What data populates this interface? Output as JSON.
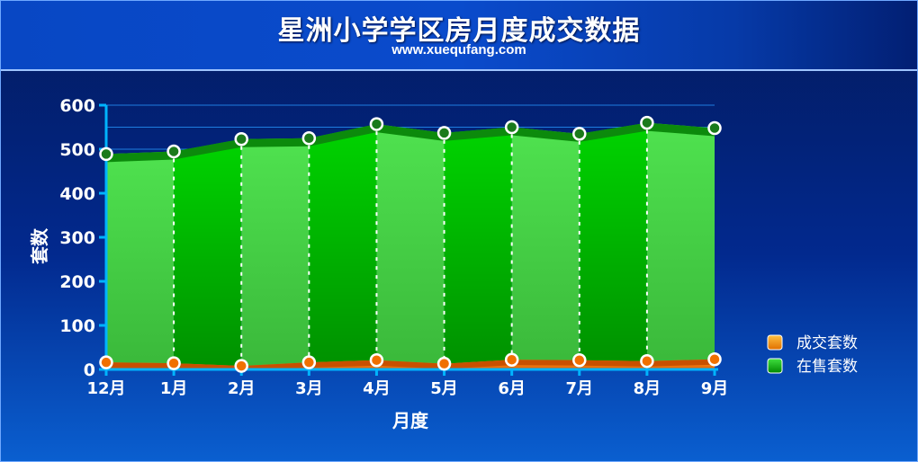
{
  "header": {
    "title": "星洲小学学区房月度成交数据",
    "subtitle": "www.xuequfang.com"
  },
  "chart_data": {
    "type": "area",
    "title": "星洲小学学区房月度成交数据",
    "subtitle": "www.xuequfang.com",
    "xlabel": "月度",
    "ylabel": "套数",
    "categories": [
      "12月",
      "1月",
      "2月",
      "3月",
      "4月",
      "5月",
      "6月",
      "7月",
      "8月",
      "9月"
    ],
    "y_ticks": [
      "600",
      "500",
      "400",
      "300",
      "200",
      "100",
      "0"
    ],
    "ylim": [
      0,
      600
    ],
    "legend_position": "right",
    "series": [
      {
        "name": "成交套数",
        "color": "#f07800",
        "values": [
          16,
          14,
          8,
          16,
          21,
          13,
          22,
          21,
          19,
          23
        ]
      },
      {
        "name": "在售套数",
        "color": "#00b000",
        "values": [
          489,
          495,
          523,
          525,
          557,
          537,
          550,
          535,
          560,
          548
        ]
      }
    ]
  }
}
